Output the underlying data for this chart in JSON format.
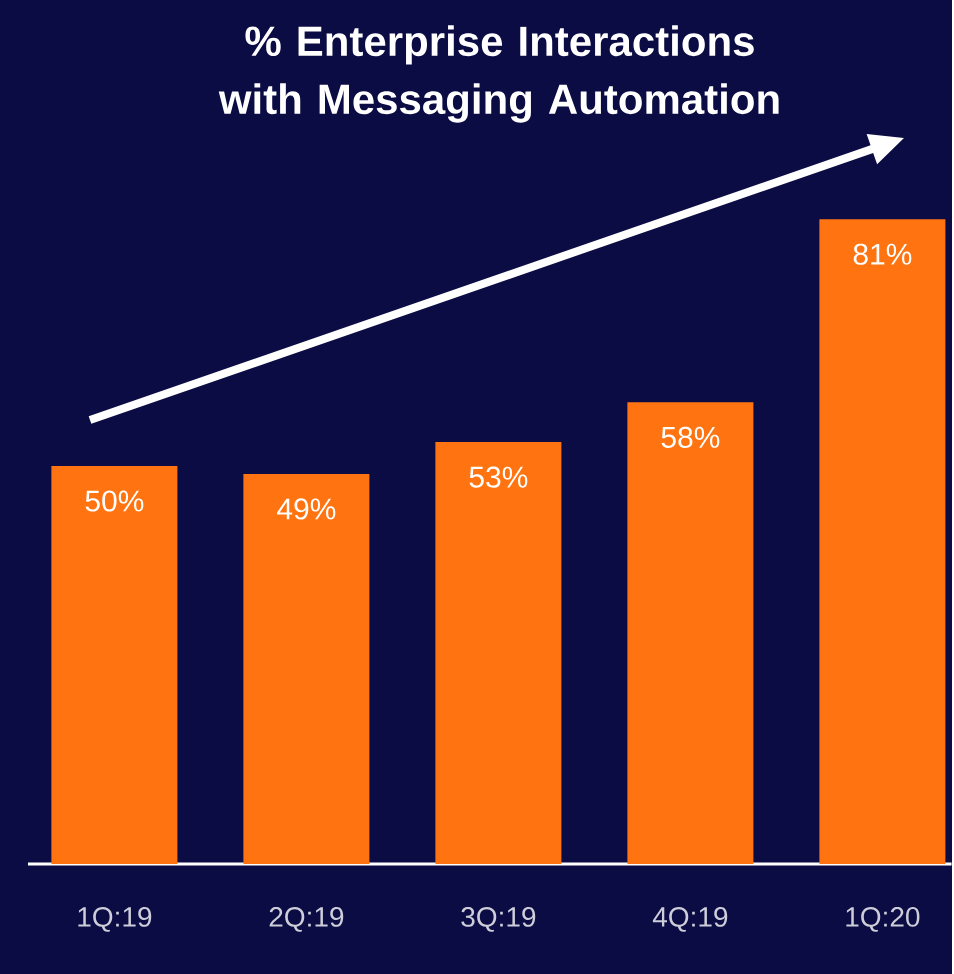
{
  "chart_data": {
    "type": "bar",
    "title": "% Enterprise Interactions with Messaging Automation",
    "categories": [
      "1Q:19",
      "2Q:19",
      "3Q:19",
      "4Q:19",
      "1Q:20"
    ],
    "values": [
      50,
      49,
      53,
      58,
      81
    ],
    "value_labels": [
      "50%",
      "49%",
      "53%",
      "58%",
      "81%"
    ],
    "color": "#ff7410"
  }
}
